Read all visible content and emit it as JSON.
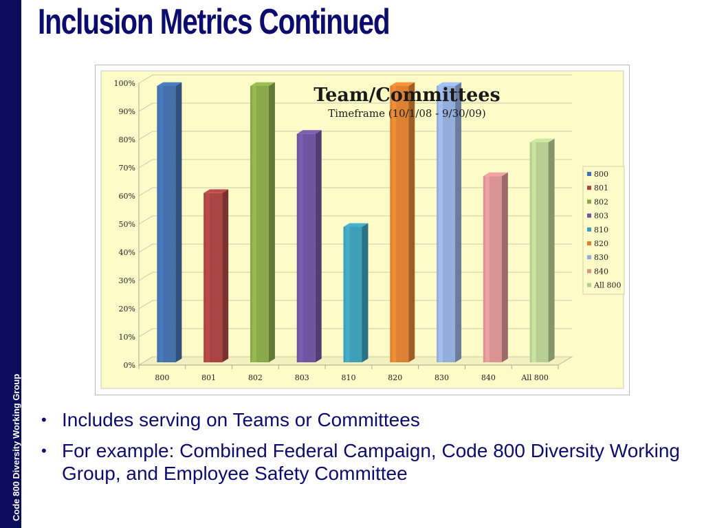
{
  "slide": {
    "title": "Inclusion Metrics Continued",
    "sidebar_text": "Code 800 Diversity Working Group",
    "bullets": [
      "Includes serving on Teams or Committees",
      "For example: Combined Federal Campaign, Code 800 Diversity Working Group, and Employee Safety Committee"
    ]
  },
  "chart_data": {
    "type": "bar",
    "title": "Team/Committees",
    "subtitle": "Timeframe (10/1/08 - 9/30/09)",
    "categories": [
      "800",
      "801",
      "802",
      "803",
      "810",
      "820",
      "830",
      "840",
      "All 800"
    ],
    "values": [
      100,
      62,
      100,
      83,
      50,
      100,
      100,
      68,
      80
    ],
    "colors": [
      "#4470ab",
      "#a94442",
      "#8aa94b",
      "#6f55a0",
      "#3f9eb8",
      "#dd8233",
      "#94aedb",
      "#d99393",
      "#b7cf92"
    ],
    "y_ticks": [
      "0%",
      "10%",
      "20%",
      "30%",
      "40%",
      "50%",
      "60%",
      "70%",
      "80%",
      "90%",
      "100%"
    ],
    "ylim": [
      0,
      100
    ],
    "legend": [
      "800",
      "801",
      "802",
      "803",
      "810",
      "820",
      "830",
      "840",
      "All 800"
    ],
    "legend_position": "right",
    "grid": true,
    "background_color": "#fdfcc9"
  }
}
